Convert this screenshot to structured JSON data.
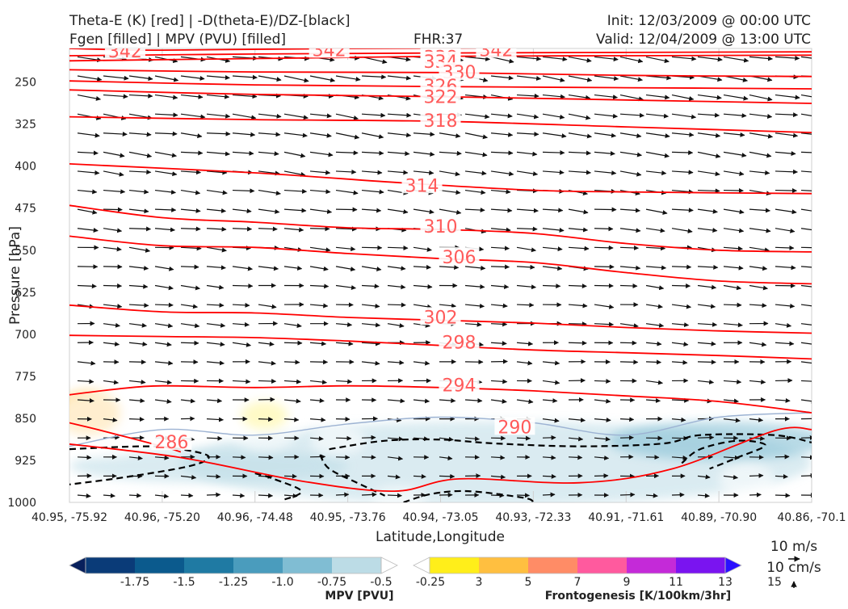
{
  "header": {
    "title_left_1": "Theta-E (K) [red] | -D(theta-E)/DZ-[black]",
    "title_left_2": "Fgen [filled] | MPV (PVU) [filled]",
    "title_center": "FHR:37",
    "title_right_1": "Init: 12/03/2009 @ 00:00 UTC",
    "title_right_2": "Valid: 12/04/2009 @ 13:00 UTC"
  },
  "chart_data": {
    "type": "cross-section",
    "xlabel": "Latitude,Longitude",
    "ylabel": "Pressure [hPa]",
    "x_ticks": [
      "40.95, -75.92",
      "40.96, -75.20",
      "40.96, -74.48",
      "40.95, -73.76",
      "40.94, -73.05",
      "40.93, -72.33",
      "40.91, -71.61",
      "40.89, -70.90",
      "40.86, -70.1"
    ],
    "y_ticks": [
      250,
      325,
      400,
      475,
      550,
      625,
      700,
      775,
      850,
      925,
      1000
    ],
    "ylim": [
      1000,
      190
    ],
    "y_scale": "linear",
    "theta_e_contours": [
      {
        "level": 342,
        "points": [
          [
            0,
            190
          ],
          [
            1,
            193
          ],
          [
            3,
            190
          ],
          [
            6,
            188
          ],
          [
            8,
            186
          ]
        ]
      },
      {
        "level": 338,
        "points": [
          [
            0,
            203
          ],
          [
            2,
            200
          ],
          [
            4,
            198
          ],
          [
            6,
            197
          ],
          [
            8,
            196
          ]
        ]
      },
      {
        "level": 334,
        "points": [
          [
            0,
            212
          ],
          [
            2,
            208
          ],
          [
            4,
            204
          ],
          [
            6,
            203
          ],
          [
            8,
            202
          ]
        ]
      },
      {
        "level": 330,
        "points": [
          [
            0,
            228
          ],
          [
            2,
            232
          ],
          [
            4,
            233
          ],
          [
            6,
            238
          ],
          [
            8,
            240
          ]
        ]
      },
      {
        "level": 326,
        "points": [
          [
            0,
            248
          ],
          [
            2,
            255
          ],
          [
            4,
            258
          ],
          [
            6,
            260
          ],
          [
            8,
            262
          ]
        ]
      },
      {
        "level": 322,
        "points": [
          [
            0,
            264
          ],
          [
            2,
            272
          ],
          [
            4,
            276
          ],
          [
            6,
            282
          ],
          [
            8,
            288
          ]
        ]
      },
      {
        "level": 318,
        "points": [
          [
            0,
            312
          ],
          [
            2,
            317
          ],
          [
            4,
            320
          ],
          [
            6,
            330
          ],
          [
            8,
            340
          ]
        ]
      },
      {
        "level": 314,
        "points": [
          [
            0,
            396
          ],
          [
            2,
            412
          ],
          [
            3.6,
            430
          ],
          [
            5,
            443
          ],
          [
            6,
            446
          ],
          [
            8,
            449
          ]
        ]
      },
      {
        "level": 310,
        "points": [
          [
            0,
            470
          ],
          [
            1,
            492
          ],
          [
            2,
            500
          ],
          [
            3,
            510
          ],
          [
            4,
            513
          ],
          [
            5,
            520
          ],
          [
            6,
            538
          ],
          [
            7,
            550
          ],
          [
            8,
            553
          ]
        ]
      },
      {
        "level": 306,
        "points": [
          [
            0,
            525
          ],
          [
            1,
            542
          ],
          [
            2,
            545
          ],
          [
            3,
            556
          ],
          [
            4,
            565
          ],
          [
            5,
            572
          ],
          [
            6,
            590
          ],
          [
            7,
            605
          ],
          [
            8,
            610
          ]
        ]
      },
      {
        "level": 302,
        "points": [
          [
            0,
            648
          ],
          [
            1,
            660
          ],
          [
            2,
            662
          ],
          [
            3,
            670
          ],
          [
            4,
            675
          ],
          [
            5,
            680
          ],
          [
            6,
            688
          ],
          [
            7,
            694
          ],
          [
            8,
            698
          ]
        ]
      },
      {
        "level": 298,
        "points": [
          [
            0,
            702
          ],
          [
            1,
            704
          ],
          [
            2,
            706
          ],
          [
            3,
            712
          ],
          [
            4,
            720
          ],
          [
            5,
            728
          ],
          [
            6,
            733
          ],
          [
            7,
            738
          ],
          [
            8,
            744
          ]
        ]
      },
      {
        "level": 294,
        "points": [
          [
            0,
            808
          ],
          [
            0.5,
            798
          ],
          [
            1,
            792
          ],
          [
            2,
            795
          ],
          [
            3,
            792
          ],
          [
            4,
            795
          ],
          [
            5,
            801
          ],
          [
            6,
            810
          ],
          [
            7,
            820
          ],
          [
            8,
            840
          ]
        ]
      },
      {
        "level": 290,
        "points": [
          [
            0,
            896
          ],
          [
            1.2,
            920
          ],
          [
            2.5,
            962
          ],
          [
            3.5,
            980
          ],
          [
            4.2,
            958
          ],
          [
            5.5,
            965
          ],
          [
            6.5,
            940
          ],
          [
            7.6,
            872
          ],
          [
            8,
            870
          ]
        ]
      },
      {
        "level": 286,
        "points": [
          [
            0,
            858
          ],
          [
            0.3,
            870
          ],
          [
            1,
            900
          ],
          [
            1.2,
            910
          ]
        ]
      }
    ],
    "theta_e_labels": [
      {
        "level": 342,
        "x": 0.6,
        "y": 194
      },
      {
        "level": 342,
        "x": 2.8,
        "y": 192
      },
      {
        "level": 342,
        "x": 4.6,
        "y": 192
      },
      {
        "level": 338,
        "x": 4.0,
        "y": 205
      },
      {
        "level": 334,
        "x": 4.0,
        "y": 213
      },
      {
        "level": 330,
        "x": 4.2,
        "y": 232
      },
      {
        "level": 326,
        "x": 4.0,
        "y": 256
      },
      {
        "level": 322,
        "x": 4.0,
        "y": 276
      },
      {
        "level": 318,
        "x": 4.0,
        "y": 318
      },
      {
        "level": 314,
        "x": 3.8,
        "y": 434
      },
      {
        "level": 310,
        "x": 4.0,
        "y": 507
      },
      {
        "level": 306,
        "x": 4.2,
        "y": 562
      },
      {
        "level": 302,
        "x": 4.0,
        "y": 669
      },
      {
        "level": 298,
        "x": 4.2,
        "y": 714
      },
      {
        "level": 294,
        "x": 4.2,
        "y": 790
      },
      {
        "level": 290,
        "x": 4.8,
        "y": 865
      },
      {
        "level": 286,
        "x": 1.1,
        "y": 892
      }
    ],
    "neg_dthetae_dz_contours": [
      {
        "points": [
          [
            0,
            905
          ],
          [
            0.8,
            900
          ],
          [
            1.2,
            905
          ],
          [
            1.5,
            918
          ],
          [
            1.3,
            935
          ],
          [
            0.6,
            955
          ],
          [
            0,
            968
          ]
        ]
      },
      {
        "points": [
          [
            2.7,
            915
          ],
          [
            2.8,
            940
          ],
          [
            3.1,
            965
          ],
          [
            3.4,
            988
          ]
        ]
      },
      {
        "points": [
          [
            2.8,
            905
          ],
          [
            3.4,
            890
          ],
          [
            4,
            888
          ],
          [
            4.6,
            895
          ],
          [
            5.5,
            900
          ],
          [
            6.4,
            895
          ],
          [
            6.8,
            880
          ],
          [
            7.6,
            880
          ],
          [
            8,
            893
          ]
        ]
      },
      {
        "points": [
          [
            6.6,
            930
          ],
          [
            6.8,
            905
          ],
          [
            7.2,
            890
          ],
          [
            7.5,
            898
          ],
          [
            7.2,
            920
          ],
          [
            6.9,
            940
          ]
        ]
      },
      {
        "points": [
          [
            3.6,
            1000
          ],
          [
            3.9,
            985
          ],
          [
            4.3,
            980
          ],
          [
            4.9,
            992
          ],
          [
            5,
            1000
          ]
        ]
      },
      {
        "points": [
          [
            2,
            948
          ],
          [
            2.2,
            958
          ],
          [
            2.5,
            980
          ],
          [
            2.3,
            996
          ]
        ]
      }
    ],
    "mpv_contour": [
      [
        0,
        900
      ],
      [
        1,
        870
      ],
      [
        2,
        880
      ],
      [
        3,
        860
      ],
      [
        4,
        848
      ],
      [
        5,
        858
      ],
      [
        6,
        880
      ],
      [
        7,
        848
      ],
      [
        8,
        840
      ]
    ],
    "fgen_patches": [
      {
        "x": 0.2,
        "y": 840,
        "rx": 0.35,
        "ry": 40,
        "value": 7
      },
      {
        "x": 0.4,
        "y": 860,
        "rx": 0.6,
        "ry": 60,
        "value": 3
      },
      {
        "x": 2.1,
        "y": 845,
        "rx": 0.25,
        "ry": 25,
        "value": 5
      },
      {
        "x": 2.1,
        "y": 840,
        "rx": 0.45,
        "ry": 70,
        "value": 3
      },
      {
        "x": 2.9,
        "y": 890,
        "rx": 0.3,
        "ry": 25,
        "value": 3
      },
      {
        "x": 3.55,
        "y": 990,
        "rx": 0.3,
        "ry": 20,
        "value": 3
      },
      {
        "x": 7.3,
        "y": 960,
        "rx": 0.3,
        "ry": 30,
        "value": 3
      }
    ],
    "mpv_patches": [
      {
        "x": 4.6,
        "y": 930,
        "rx": 3.4,
        "ry": 75,
        "value": -0.25
      },
      {
        "x": 7.0,
        "y": 890,
        "rx": 1.2,
        "ry": 35,
        "value": -0.5
      },
      {
        "x": 1.5,
        "y": 935,
        "rx": 1.5,
        "ry": 30,
        "value": -0.25
      }
    ],
    "wind_vectors": "arrows at every grid point across the section, pointing mostly eastward",
    "mpv_colorbar": {
      "label": "MPV [PVU]",
      "ticks": [
        "-1.75",
        "-1.5",
        "-1.25",
        "-1.0",
        "-0.75",
        "-0.5",
        "-0.25"
      ],
      "colors": [
        "#08205c",
        "#0a3b78",
        "#0b5a8d",
        "#1f7aa3",
        "#4a9cbd",
        "#80bdd3",
        "#bcdce6",
        "#ffffff"
      ]
    },
    "fgen_colorbar": {
      "label": "Frontogenesis [K/100km/3hr]",
      "ticks": [
        "3",
        "5",
        "7",
        "9",
        "11",
        "13",
        "15"
      ],
      "colors": [
        "#ffffff",
        "#ffee1a",
        "#ffbf40",
        "#ff8c66",
        "#ff5a9e",
        "#c42ad8",
        "#7a14f0",
        "#2a10ff"
      ]
    },
    "reference_vectors": {
      "horizontal": "10 m/s",
      "vertical": "10 cm/s"
    },
    "colors": {
      "theta_e": "#ff0000",
      "theta_e_label": "#ff5a5a",
      "dthetae": "#000000",
      "mpv_line": "#9db3d3"
    }
  }
}
